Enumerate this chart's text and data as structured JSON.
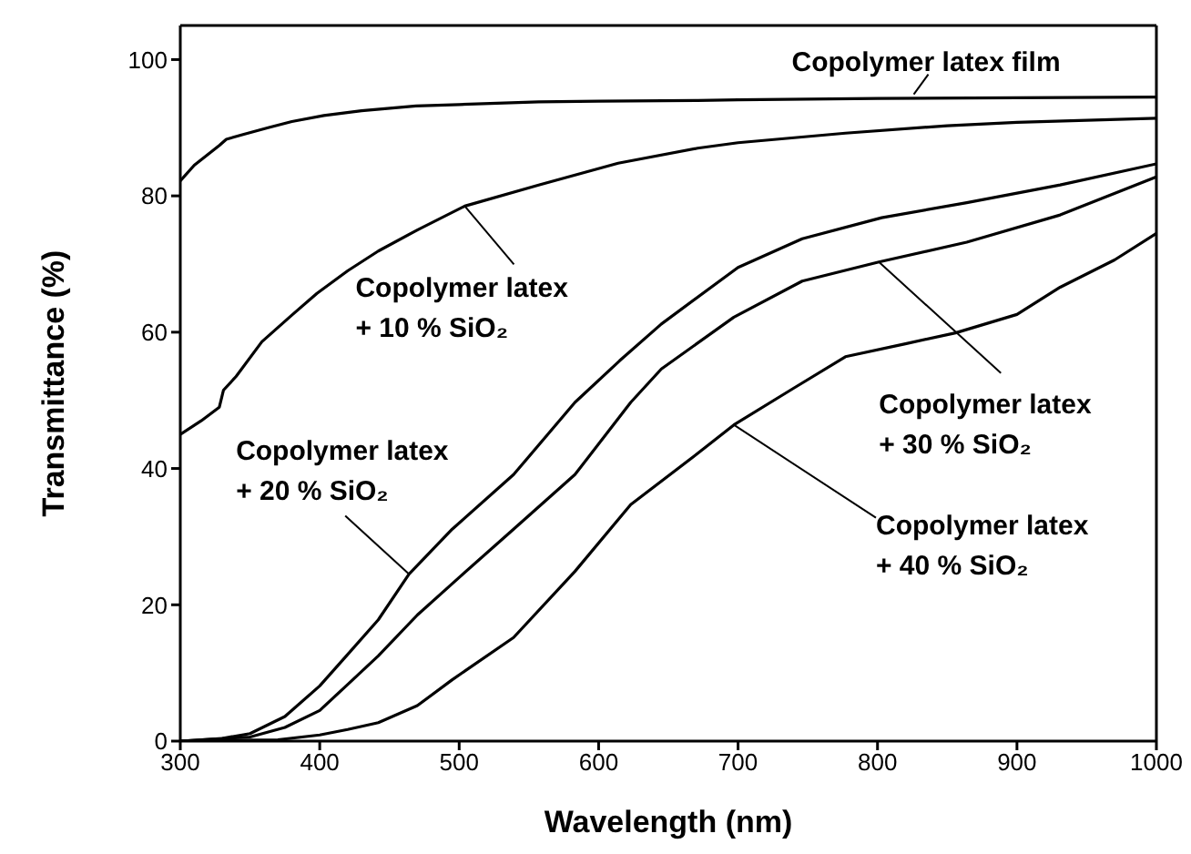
{
  "chart_data": {
    "type": "line",
    "xlabel": "Wavelength (nm)",
    "ylabel": "Transmittance (%)",
    "xlim": [
      300,
      1000
    ],
    "xticks": [
      300,
      400,
      500,
      600,
      700,
      800,
      900,
      1000
    ],
    "ylim": [
      0,
      105
    ],
    "yticks": [
      0,
      20,
      40,
      60,
      80,
      100
    ],
    "marker": "none",
    "line_style": "solid",
    "series": [
      {
        "color": "#000000",
        "x": [
          300,
          310,
          328,
          333,
          345,
          363,
          380,
          403,
          430,
          469,
          500,
          557,
          600,
          671,
          700,
          800,
          900,
          1000
        ],
        "values": [
          82.2,
          84.5,
          87.4,
          88.3,
          89,
          90,
          90.9,
          91.8,
          92.5,
          93.2,
          93.4,
          93.8,
          93.9,
          94,
          94.1,
          94.3,
          94.4,
          94.5
        ]
      },
      {
        "color": "#000000",
        "x": [
          300,
          315,
          328,
          331,
          340,
          358.5,
          380,
          398,
          420,
          442,
          470,
          504,
          557,
          614,
          671,
          700,
          777,
          850,
          900,
          1000
        ],
        "values": [
          45,
          47,
          49,
          51.5,
          53.5,
          58.6,
          62.5,
          65.7,
          69,
          71.9,
          75,
          78.5,
          81.6,
          84.8,
          87,
          87.8,
          89.2,
          90.3,
          90.8,
          91.4
        ]
      },
      {
        "color": "#000000",
        "x": [
          300,
          330,
          350,
          375,
          400,
          420,
          442,
          464,
          495,
          539,
          583,
          615,
          645,
          700,
          746,
          803,
          864,
          931,
          1000
        ],
        "values": [
          0,
          0.4,
          1.1,
          3.6,
          8.1,
          12.7,
          17.8,
          24.5,
          31.1,
          39.1,
          49.7,
          55.8,
          61.2,
          69.5,
          73.7,
          76.8,
          79,
          81.6,
          84.7
        ]
      },
      {
        "color": "#000000",
        "x": [
          300,
          350,
          375,
          400,
          420,
          442,
          470,
          495,
          539,
          583,
          623,
          645,
          697,
          746,
          801,
          864,
          931,
          1000
        ],
        "values": [
          0,
          0.6,
          2,
          4.5,
          8.3,
          12.5,
          18.5,
          23.1,
          31.1,
          39.1,
          49.7,
          54.6,
          62.2,
          67.5,
          70.3,
          73.2,
          77.2,
          82.8
        ]
      },
      {
        "color": "#000000",
        "x": [
          300,
          370,
          400,
          420,
          442,
          470,
          495,
          539,
          583,
          623,
          671,
          697,
          740,
          777,
          820,
          856,
          900,
          931,
          970,
          1000
        ],
        "values": [
          0,
          0.2,
          0.9,
          1.7,
          2.7,
          5.2,
          9,
          15.2,
          24.9,
          34.7,
          42.2,
          46.4,
          51.8,
          56.4,
          58.3,
          59.9,
          62.6,
          66.6,
          70.6,
          74.5
        ]
      }
    ],
    "annotations": [
      {
        "text": "Copolymer latex film",
        "x": 826,
        "y": 94.9
      },
      {
        "text": "Copolymer latex\n+ 10 % SiO₂",
        "x": 504,
        "y": 78.5
      },
      {
        "text": "Copolymer latex\n+ 20 % SiO₂",
        "x": 464,
        "y": 24.5
      },
      {
        "text": "Copolymer latex\n+ 30 % SiO₂",
        "x": 801,
        "y": 70.3
      },
      {
        "text": "Copolymer latex\n+ 40 % SiO₂",
        "x": 697,
        "y": 46.4
      }
    ]
  }
}
